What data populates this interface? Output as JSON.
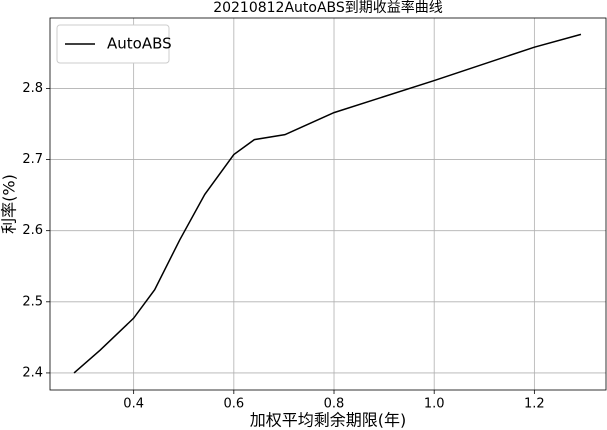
{
  "chart_data": {
    "type": "line",
    "title": "20210812AutoABS到期收益率曲线",
    "x_label": "加权平均剩余期限(年)",
    "y_label": "利率(%)",
    "x": [
      0.281,
      0.333,
      0.4,
      0.442,
      0.492,
      0.542,
      0.6,
      0.641,
      0.702,
      0.8,
      1.0,
      1.2,
      1.293
    ],
    "series": [
      {
        "name": "AutoABS",
        "color": "#000000",
        "values": [
          2.4,
          2.432,
          2.477,
          2.517,
          2.587,
          2.651,
          2.707,
          2.728,
          2.735,
          2.766,
          2.811,
          2.858,
          2.876
        ]
      }
    ],
    "xlim": [
      0.233,
      1.343
    ],
    "ylim": [
      2.376,
      2.899
    ],
    "xticks": [
      0.4,
      0.6,
      0.8,
      {
        "value": 1,
        "label": "1.0"
      },
      1.2
    ],
    "yticks": [
      2.4,
      2.5,
      2.6,
      2.7,
      2.8
    ],
    "grid": true,
    "legend": "upper-left"
  }
}
